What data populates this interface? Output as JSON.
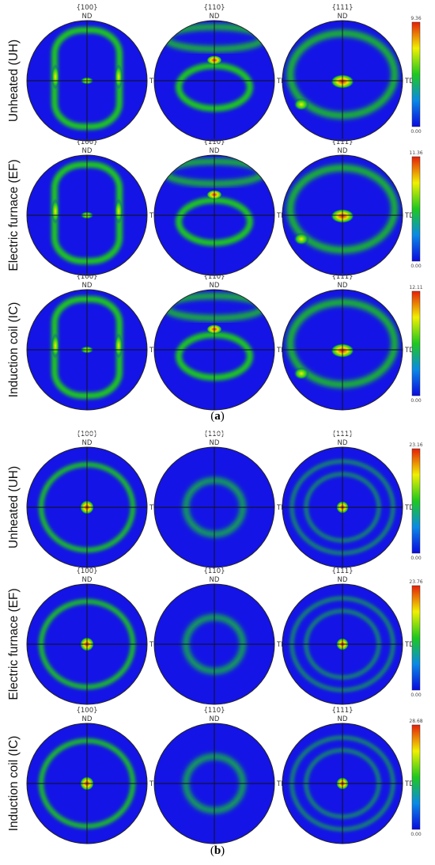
{
  "panels": [
    {
      "label": "(a)",
      "rows": [
        {
          "name": "Unheated (UH)",
          "cbar_max": "9.36",
          "cbar_min": "0.00"
        },
        {
          "name": "Electric furnace (EF)",
          "cbar_max": "11.36",
          "cbar_min": "0.00"
        },
        {
          "name": "Induction coil (IC)",
          "cbar_max": "12.11",
          "cbar_min": "0.00"
        }
      ]
    },
    {
      "label": "(b)",
      "rows": [
        {
          "name": "Unheated (UH)",
          "cbar_max": "23.16",
          "cbar_min": "0.00"
        },
        {
          "name": "Electric furnace (EF)",
          "cbar_max": "23.76",
          "cbar_min": "0.00"
        },
        {
          "name": "Induction coil (IC)",
          "cbar_max": "28.68",
          "cbar_min": "0.00"
        }
      ]
    }
  ],
  "poles": [
    "{100}",
    "{110}",
    "{111}"
  ],
  "axis_labels": {
    "nd": "ND",
    "td": "TD"
  },
  "colors": {
    "background": "#1414e6",
    "low": "#0a0ae0",
    "mid": "#1ec81e",
    "high_yellow": "#f0f000",
    "high_red": "#e61e0a"
  }
}
